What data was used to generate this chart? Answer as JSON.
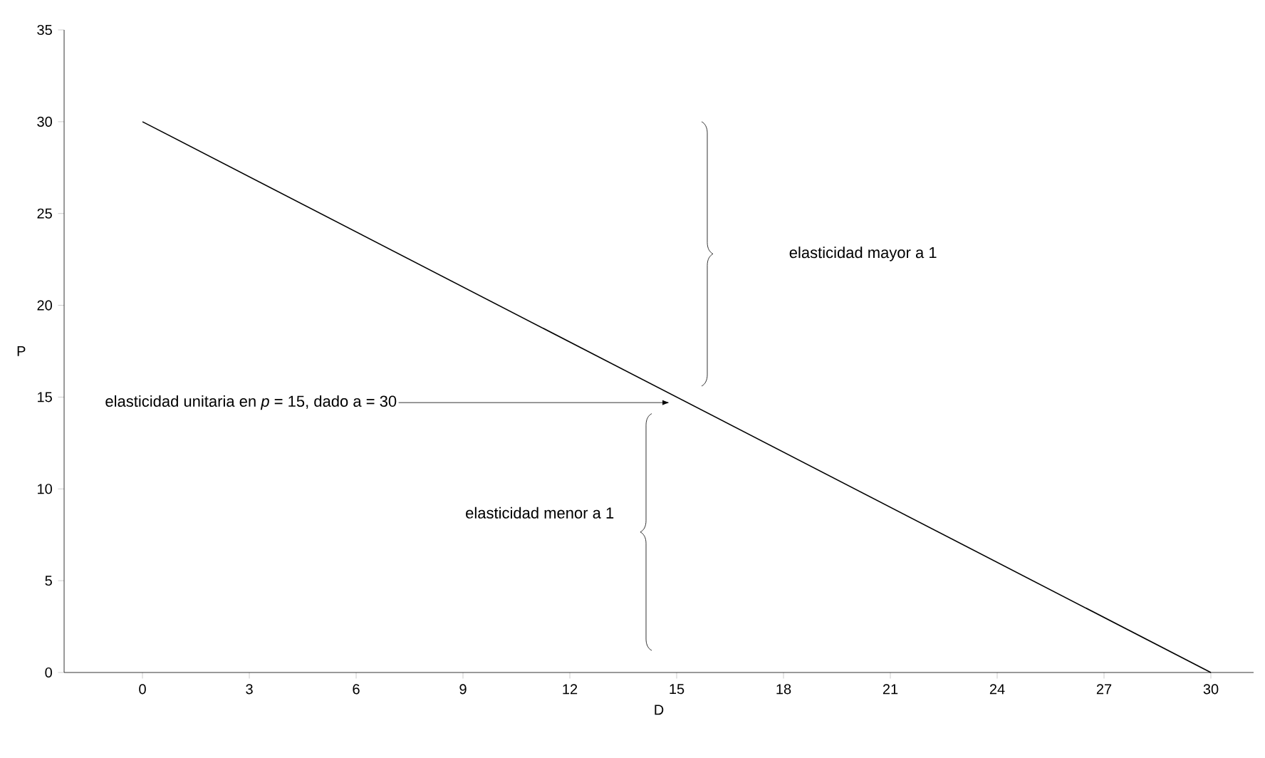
{
  "chart_data": {
    "type": "line",
    "xlabel": "D",
    "ylabel": "P",
    "x": [
      0,
      30
    ],
    "series": [
      {
        "color": "#000000",
        "values": [
          30,
          0
        ]
      }
    ],
    "xlim": [
      -2.2,
      31.2
    ],
    "xticks": [
      0,
      3,
      6,
      9,
      12,
      15,
      18,
      21,
      24,
      27,
      30
    ],
    "ylim": [
      0,
      35
    ],
    "yticks": [
      0,
      5,
      10,
      15,
      20,
      25,
      30,
      35
    ],
    "grid": false,
    "marker": "none",
    "line_style": "solid",
    "annotations": [
      "elasticidad mayor a 1",
      "elasticidad unitaria en *p* = 15, dado a = 30",
      "elasticidad menor a 1"
    ]
  }
}
